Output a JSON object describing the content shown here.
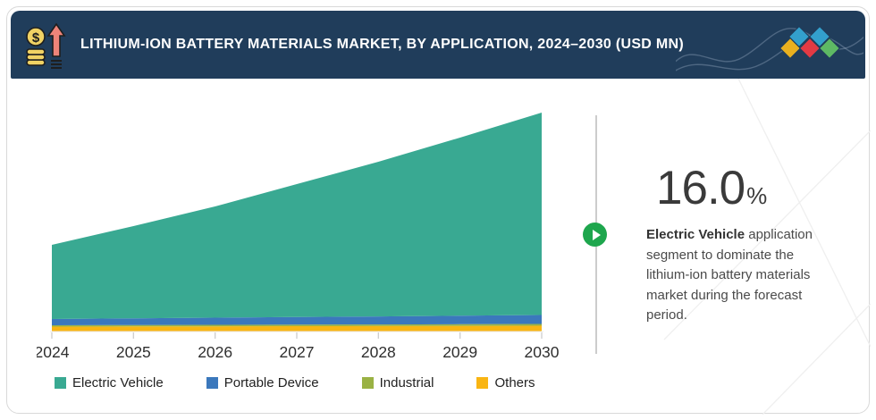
{
  "header": {
    "title": "LITHIUM-ION BATTERY MATERIALS MARKET, BY APPLICATION, 2024–2030 (USD MN)",
    "bg_color": "#203d5b",
    "icon": "money-growth-icon",
    "decor_diamond_colors": [
      "#33a0cc",
      "#33a0cc",
      "#e9b01f",
      "#e23a44",
      "#5eb964"
    ]
  },
  "chart_data": {
    "type": "area",
    "stacked": true,
    "x": [
      2024,
      2025,
      2026,
      2027,
      2028,
      2029,
      2030
    ],
    "series": [
      {
        "name": "Electric Vehicle",
        "color": "#39a992",
        "values": [
          83,
          103.2,
          124.5,
          148.7,
          173.1,
          199.3,
          226.5
        ]
      },
      {
        "name": "Portable Device",
        "color": "#3b78bc",
        "values": [
          7,
          7.5,
          8,
          8.5,
          9,
          9.5,
          10
        ]
      },
      {
        "name": "Industrial",
        "color": "#9ab244",
        "values": [
          1.5,
          1.6,
          1.7,
          1.8,
          1.8,
          1.9,
          2
        ]
      },
      {
        "name": "Others",
        "color": "#f9b513",
        "values": [
          5.5,
          5.7,
          5.8,
          6,
          6.1,
          6.3,
          6.5
        ]
      }
    ],
    "title": "",
    "xlabel": "",
    "ylabel": "",
    "units": "USD MN (no y-axis scale shown; values are relative estimates)",
    "y_axis_visible": false,
    "grid": false,
    "legend_position": "bottom"
  },
  "insight": {
    "value": "16.0",
    "unit": "%",
    "highlight": "Electric Vehicle",
    "text": " application segment to dominate the lithium-ion battery materials market during the forecast period.",
    "accent_color": "#1ea64d"
  }
}
